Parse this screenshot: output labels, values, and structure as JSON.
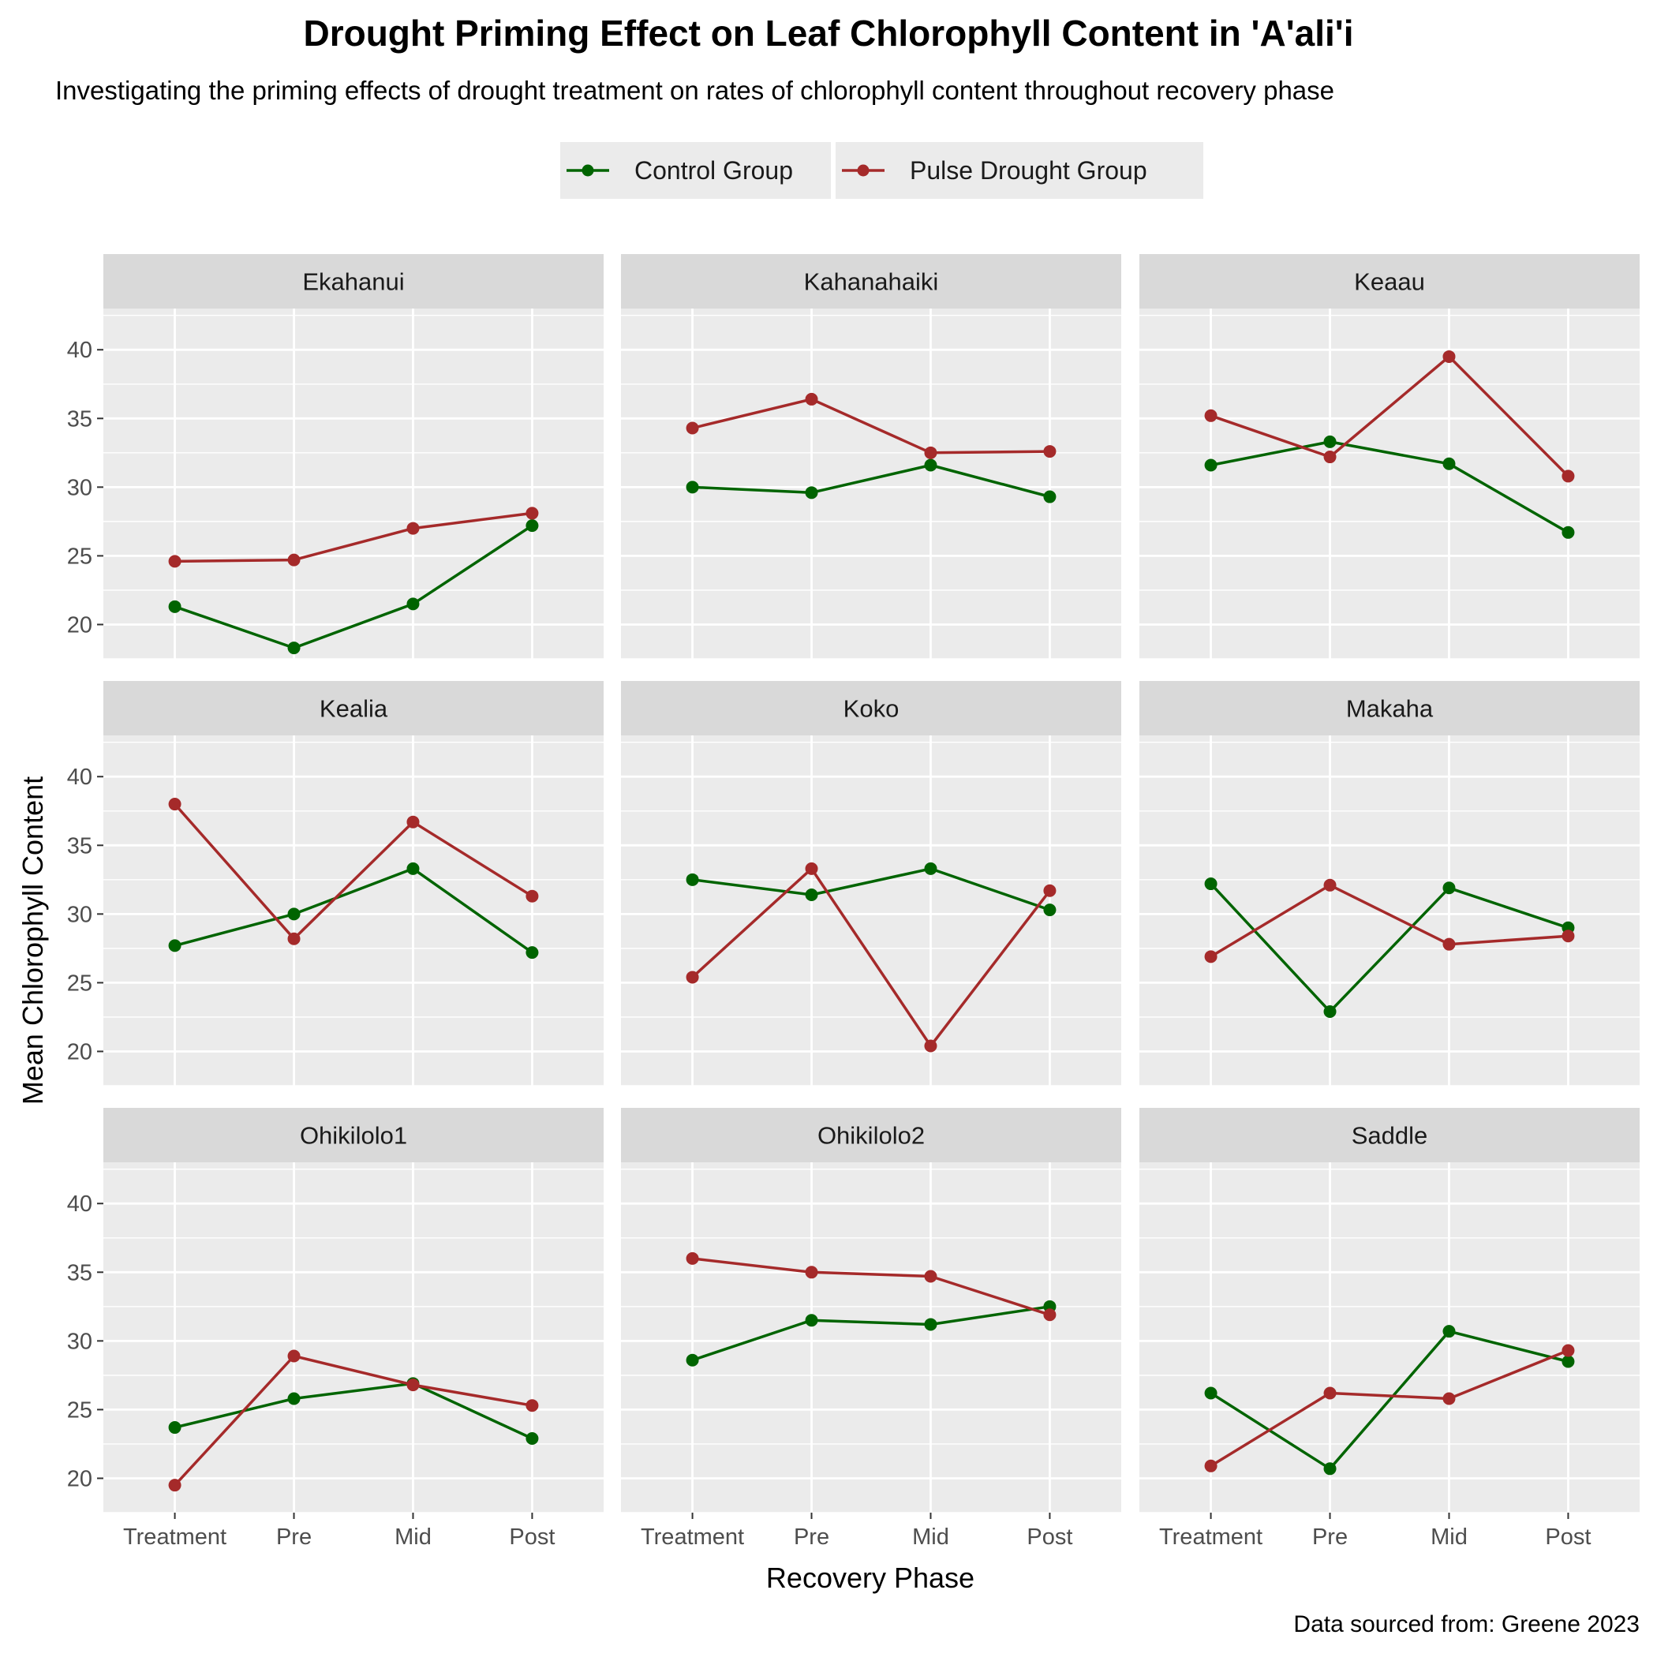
{
  "chart_data": {
    "type": "line",
    "title": "Drought Priming Effect on Leaf Chlorophyll Content in 'A'ali'i",
    "subtitle": "Investigating the priming effects of drought treatment on rates of chlorophyll content throughout recovery phase",
    "xlabel": "Recovery Phase",
    "ylabel": "Mean Chlorophyll Content",
    "caption": "Data sourced from: Greene 2023",
    "categories": [
      "Treatment",
      "Pre",
      "Mid",
      "Post"
    ],
    "ylim": [
      17.5,
      43
    ],
    "yticks": [
      20,
      25,
      30,
      35,
      40
    ],
    "grid": true,
    "legend": {
      "position": "top",
      "entries": [
        "Control Group",
        "Pulse Drought Group"
      ]
    },
    "colors": {
      "Control Group": "#006400",
      "Pulse Drought Group": "#a52a2a"
    },
    "facets": [
      {
        "name": "Ekahanui",
        "series": [
          {
            "name": "Control Group",
            "values": [
              21.3,
              18.3,
              21.5,
              27.2
            ]
          },
          {
            "name": "Pulse Drought Group",
            "values": [
              24.6,
              24.7,
              27.0,
              28.1
            ]
          }
        ]
      },
      {
        "name": "Kahanahaiki",
        "series": [
          {
            "name": "Control Group",
            "values": [
              30.0,
              29.6,
              31.6,
              29.3
            ]
          },
          {
            "name": "Pulse Drought Group",
            "values": [
              34.3,
              36.4,
              32.5,
              32.6
            ]
          }
        ]
      },
      {
        "name": "Keaau",
        "series": [
          {
            "name": "Control Group",
            "values": [
              31.6,
              33.3,
              31.7,
              26.7
            ]
          },
          {
            "name": "Pulse Drought Group",
            "values": [
              35.2,
              32.2,
              39.5,
              30.8
            ]
          }
        ]
      },
      {
        "name": "Kealia",
        "series": [
          {
            "name": "Control Group",
            "values": [
              27.7,
              30.0,
              33.3,
              27.2
            ]
          },
          {
            "name": "Pulse Drought Group",
            "values": [
              38.0,
              28.2,
              36.7,
              31.3
            ]
          }
        ]
      },
      {
        "name": "Koko",
        "series": [
          {
            "name": "Control Group",
            "values": [
              32.5,
              31.4,
              33.3,
              30.3
            ]
          },
          {
            "name": "Pulse Drought Group",
            "values": [
              25.4,
              33.3,
              20.4,
              31.7
            ]
          }
        ]
      },
      {
        "name": "Makaha",
        "series": [
          {
            "name": "Control Group",
            "values": [
              32.2,
              22.9,
              31.9,
              29.0
            ]
          },
          {
            "name": "Pulse Drought Group",
            "values": [
              26.9,
              32.1,
              27.8,
              28.4
            ]
          }
        ]
      },
      {
        "name": "Ohikilolo1",
        "series": [
          {
            "name": "Control Group",
            "values": [
              23.7,
              25.8,
              26.9,
              22.9
            ]
          },
          {
            "name": "Pulse Drought Group",
            "values": [
              19.5,
              28.9,
              26.8,
              25.3
            ]
          }
        ]
      },
      {
        "name": "Ohikilolo2",
        "series": [
          {
            "name": "Control Group",
            "values": [
              28.6,
              31.5,
              31.2,
              32.5
            ]
          },
          {
            "name": "Pulse Drought Group",
            "values": [
              36.0,
              35.0,
              34.7,
              31.9
            ]
          }
        ]
      },
      {
        "name": "Saddle",
        "series": [
          {
            "name": "Control Group",
            "values": [
              26.2,
              20.7,
              30.7,
              28.5
            ]
          },
          {
            "name": "Pulse Drought Group",
            "values": [
              20.9,
              26.2,
              25.8,
              29.3
            ]
          }
        ]
      }
    ]
  }
}
